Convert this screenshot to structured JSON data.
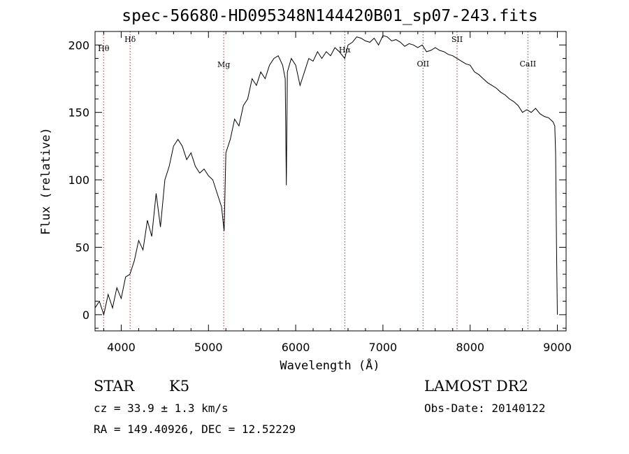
{
  "chart_data": {
    "type": "line",
    "title": "spec-56680-HD095348N144420B01_sp07-243.fits",
    "xlabel": "Wavelength (Å)",
    "ylabel": "Flux (relative)",
    "xlim": [
      3700,
      9100
    ],
    "ylim": [
      -12,
      210
    ],
    "xticks": [
      4000,
      5000,
      6000,
      7000,
      8000,
      9000
    ],
    "yticks": [
      0,
      50,
      100,
      150,
      200
    ],
    "series": [
      {
        "x": [
          3700,
          3750,
          3800,
          3850,
          3900,
          3950,
          4000,
          4050,
          4100,
          4150,
          4200,
          4250,
          4300,
          4350,
          4400,
          4450,
          4500,
          4550,
          4600,
          4650,
          4700,
          4750,
          4800,
          4850,
          4900,
          4950,
          5000,
          5050,
          5100,
          5150,
          5180,
          5200,
          5250,
          5300,
          5350,
          5400,
          5450,
          5500,
          5550,
          5600,
          5650,
          5700,
          5750,
          5800,
          5850,
          5880,
          5893,
          5905,
          5950,
          6000,
          6050,
          6100,
          6150,
          6200,
          6250,
          6300,
          6350,
          6400,
          6450,
          6500,
          6563,
          6600,
          6650,
          6700,
          6750,
          6800,
          6850,
          6900,
          6950,
          7000,
          7050,
          7100,
          7150,
          7200,
          7250,
          7300,
          7350,
          7400,
          7450,
          7500,
          7550,
          7600,
          7650,
          7700,
          7750,
          7800,
          7850,
          7900,
          7950,
          8000,
          8050,
          8100,
          8150,
          8200,
          8250,
          8300,
          8350,
          8400,
          8450,
          8500,
          8550,
          8600,
          8650,
          8700,
          8750,
          8800,
          8850,
          8900,
          8950,
          8970,
          8980,
          8990,
          9000
        ],
        "y": [
          5,
          10,
          0,
          15,
          5,
          20,
          12,
          28,
          30,
          40,
          55,
          48,
          70,
          58,
          90,
          65,
          100,
          110,
          125,
          130,
          125,
          115,
          120,
          110,
          105,
          108,
          103,
          100,
          90,
          80,
          62,
          120,
          130,
          145,
          140,
          155,
          160,
          175,
          170,
          180,
          175,
          185,
          190,
          192,
          185,
          175,
          96,
          180,
          190,
          185,
          170,
          180,
          190,
          188,
          195,
          190,
          195,
          192,
          198,
          195,
          190,
          200,
          202,
          206,
          205,
          203,
          202,
          205,
          200,
          207,
          206,
          203,
          204,
          202,
          199,
          201,
          200,
          198,
          200,
          195,
          196,
          198,
          196,
          195,
          193,
          192,
          190,
          188,
          186,
          185,
          180,
          178,
          175,
          172,
          170,
          168,
          165,
          163,
          160,
          158,
          155,
          150,
          152,
          150,
          153,
          149,
          147,
          146,
          143,
          140,
          120,
          50,
          0
        ]
      }
    ],
    "line_markers": [
      {
        "label": "Hθ",
        "wavelength": 3798
      },
      {
        "label": "Hδ",
        "wavelength": 4102
      },
      {
        "label": "Mg",
        "wavelength": 5175
      },
      {
        "label": "Hα",
        "wavelength": 6563
      },
      {
        "label": "OII",
        "wavelength": 7460
      },
      {
        "label": "SII",
        "wavelength": 7850
      },
      {
        "label": "CaII",
        "wavelength": 8662
      }
    ]
  },
  "info": {
    "object_type": "STAR",
    "subclass": "K5",
    "survey": "LAMOST DR2",
    "cz": "cz = 33.9 ± 1.3 km/s",
    "obs_date": "Obs-Date: 20140122",
    "radec": "RA = 149.40926, DEC =  12.52229"
  }
}
